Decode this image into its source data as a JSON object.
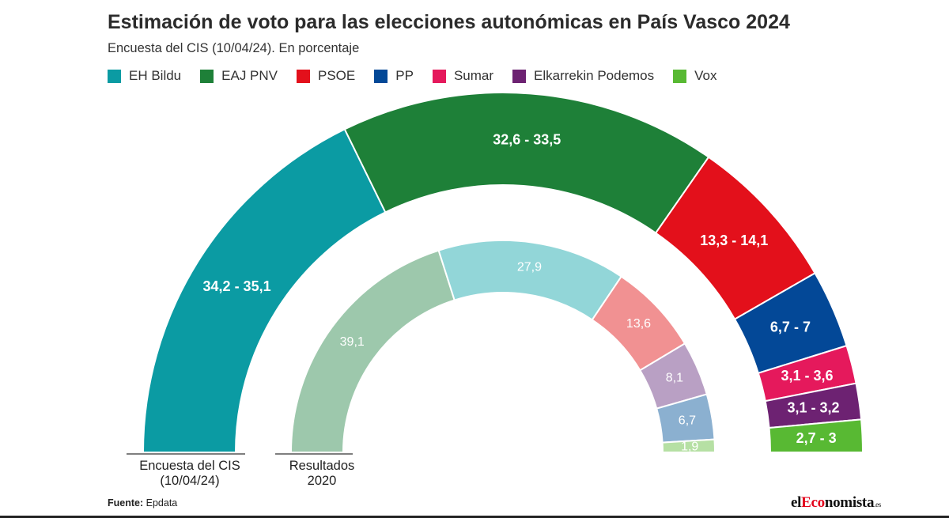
{
  "title": "Estimación de voto para las elecciones autonómicas en País Vasco 2024",
  "subtitle": "Encuesta del CIS (10/04/24). En porcentaje",
  "legend": [
    {
      "label": "EH Bildu",
      "color": "#0b9ba3"
    },
    {
      "label": "EAJ PNV",
      "color": "#1e8038"
    },
    {
      "label": "PSOE",
      "color": "#e3101b"
    },
    {
      "label": "PP",
      "color": "#034897"
    },
    {
      "label": "Sumar",
      "color": "#e5195c"
    },
    {
      "label": "Elkarrekin Podemos",
      "color": "#6d2272"
    },
    {
      "label": "Vox",
      "color": "#58b933"
    }
  ],
  "chart_data": {
    "type": "pie",
    "subtype": "half-donut",
    "series": [
      {
        "name": "Encuesta del CIS (10/04/24)",
        "categories": [
          "EH Bildu",
          "EAJ PNV",
          "PSOE",
          "PP",
          "Sumar",
          "Elkarrekin Podemos",
          "Vox"
        ],
        "labels": [
          "34,2 - 35,1",
          "32,6 - 33,5",
          "13,3 - 14,1",
          "6,7 - 7",
          "3,1 - 3,6",
          "3,1 - 3,2",
          "2,7 - 3"
        ],
        "ranges": [
          [
            34.2,
            35.1
          ],
          [
            32.6,
            33.5
          ],
          [
            13.3,
            14.1
          ],
          [
            6.7,
            7.0
          ],
          [
            3.1,
            3.6
          ],
          [
            3.1,
            3.2
          ],
          [
            2.7,
            3.0
          ]
        ],
        "colors": [
          "#0b9ba3",
          "#1e8038",
          "#e3101b",
          "#034897",
          "#e5195c",
          "#6d2272",
          "#58b933"
        ]
      },
      {
        "name": "Resultados 2020",
        "categories": [
          "EAJ PNV",
          "EH Bildu",
          "PSOE",
          "Elkarrekin Podemos",
          "PP",
          "Vox"
        ],
        "labels": [
          "39,1",
          "27,9",
          "13,6",
          "8,1",
          "6,7",
          "1,9"
        ],
        "values": [
          39.1,
          27.9,
          13.6,
          8.1,
          6.7,
          1.9
        ],
        "colors": [
          "#9dc8ac",
          "#92d6d8",
          "#f19192",
          "#b9a0c4",
          "#8bb0d0",
          "#b6e0a4"
        ]
      }
    ],
    "axis_labels": [
      [
        "Encuesta del CIS",
        "(10/04/24)"
      ],
      [
        "Resultados",
        "2020"
      ]
    ]
  },
  "source": {
    "key": "Fuente:",
    "value": "Epdata"
  },
  "logo": {
    "prefix": "el",
    "accent": "Eco",
    "main": "nomista",
    "suffix": ".es"
  }
}
